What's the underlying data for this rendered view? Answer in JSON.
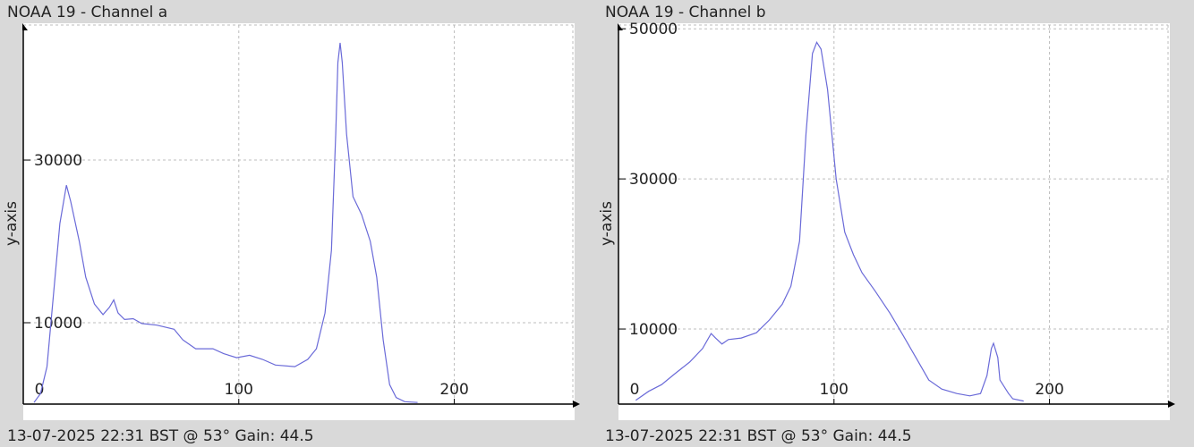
{
  "chart_data": [
    {
      "type": "line",
      "title": "NOAA 19 - Channel a",
      "y_label": "y-axis",
      "footer": "13-07-2025 22:31 BST @ 53° Gain: 44.5",
      "color": "#6a6ad8",
      "grid": true,
      "xlim": [
        0,
        255
      ],
      "ylim": [
        0,
        46600
      ],
      "xticks": [
        0,
        100,
        200
      ],
      "yticks": [
        10000,
        30000
      ],
      "x": [
        5,
        8,
        11,
        14,
        17,
        20,
        22,
        26,
        29,
        33,
        37,
        40,
        42,
        44,
        47,
        51,
        55,
        62,
        70,
        74,
        80,
        88,
        93,
        99,
        105,
        111,
        117,
        126,
        132,
        136,
        140,
        143,
        145,
        146,
        147,
        148,
        150,
        153,
        157,
        161,
        164,
        167,
        170,
        173,
        177,
        183
      ],
      "values": [
        200,
        1300,
        4600,
        13400,
        22200,
        26900,
        24900,
        20000,
        15600,
        12300,
        11000,
        11900,
        12800,
        11200,
        10400,
        10500,
        9900,
        9700,
        9200,
        7900,
        6800,
        6800,
        6200,
        5700,
        6000,
        5500,
        4800,
        4600,
        5500,
        6800,
        11200,
        18900,
        33200,
        42000,
        44400,
        42000,
        33200,
        25500,
        23300,
        20000,
        15600,
        7900,
        2400,
        800,
        300,
        200
      ]
    },
    {
      "type": "line",
      "title": "NOAA 19 - Channel b",
      "y_label": "y-axis",
      "footer": "13-07-2025 22:31 BST @ 53° Gain: 44.5",
      "color": "#6a6ad8",
      "grid": true,
      "xlim": [
        0,
        255
      ],
      "ylim": [
        0,
        50500
      ],
      "xticks": [
        0,
        100,
        200
      ],
      "yticks": [
        10000,
        30000,
        50000
      ],
      "x": [
        8,
        14,
        20,
        26,
        33,
        39,
        43,
        45,
        48,
        51,
        57,
        64,
        70,
        76,
        80,
        84,
        87,
        90,
        92,
        94,
        97,
        101,
        105,
        109,
        113,
        119,
        126,
        132,
        138,
        144,
        150,
        157,
        163,
        168,
        171,
        173,
        174,
        176,
        177,
        181,
        183,
        188
      ],
      "values": [
        500,
        1700,
        2600,
        4000,
        5600,
        7400,
        9400,
        8800,
        8000,
        8600,
        8800,
        9500,
        11200,
        13300,
        15700,
        21700,
        36000,
        46700,
        48200,
        47300,
        41900,
        30000,
        22900,
        19900,
        17500,
        15100,
        12100,
        9200,
        6200,
        3200,
        2000,
        1400,
        1100,
        1400,
        3800,
        7400,
        8100,
        6200,
        3200,
        1400,
        700,
        400
      ]
    }
  ]
}
